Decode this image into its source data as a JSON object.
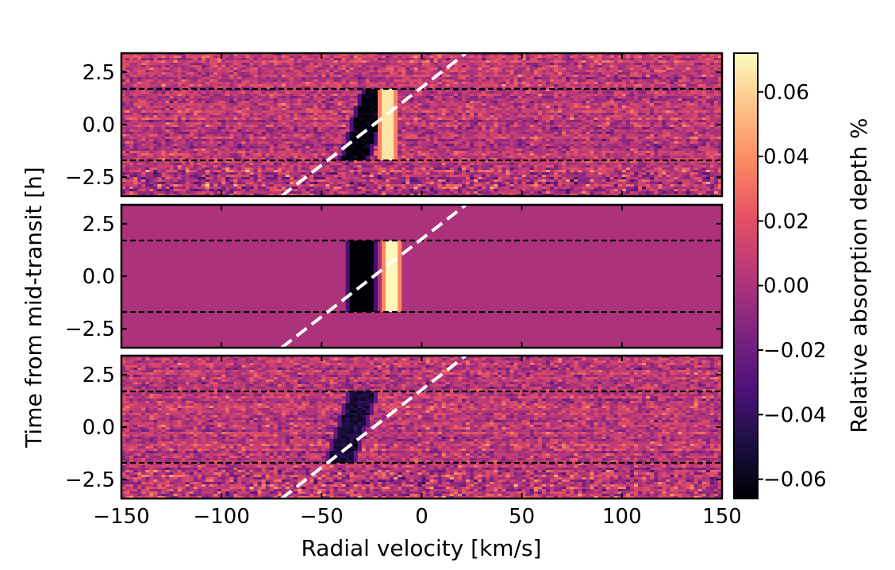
{
  "chart_data": {
    "type": "heatmap",
    "panels": [
      {
        "name": "",
        "kind": "observed-noisy",
        "shadow_velocity_kms": -28,
        "shadow_depth": -0.065,
        "bump_velocity_kms": -17,
        "bump_depth": 0.065,
        "shadow_slanted": true
      },
      {
        "name": "",
        "kind": "model",
        "shadow_velocity_kms": -30,
        "shadow_depth": -0.068,
        "bump_velocity_kms": -15,
        "bump_depth": 0.07,
        "shadow_slanted": false
      },
      {
        "name": "",
        "kind": "residual-noisy",
        "shadow_velocity_kms": -35,
        "shadow_depth": -0.05,
        "bump_velocity_kms": null,
        "bump_depth": 0,
        "shadow_slanted": true
      }
    ],
    "xlabel": "Radial velocity [km/s]",
    "ylabel": "Time from mid-transit [h]",
    "xlim": [
      -150,
      150
    ],
    "ylim": [
      -3.4,
      3.4
    ],
    "x_ticks": [
      "−150",
      "−100",
      "−50",
      "0",
      "50",
      "100",
      "150"
    ],
    "x_tick_values": [
      -150,
      -100,
      -50,
      0,
      50,
      100,
      150
    ],
    "y_ticks": [
      "2.5",
      "0.0",
      "−2.5"
    ],
    "y_tick_values": [
      2.5,
      0.0,
      -2.5
    ],
    "transit_limits_h": [
      1.7,
      -1.7
    ],
    "planet_trail": {
      "x": [
        -70,
        22
      ],
      "y": [
        -3.4,
        3.4
      ],
      "style": "white dashed"
    },
    "colorbar": {
      "label": "Relative absorption depth %",
      "ticks": [
        "0.06",
        "0.04",
        "0.02",
        "0.00",
        "−0.02",
        "−0.04",
        "−0.06"
      ],
      "tick_values": [
        0.06,
        0.04,
        0.02,
        0.0,
        -0.02,
        -0.04,
        -0.06
      ],
      "range": [
        -0.066,
        0.072
      ],
      "colormap": "magma"
    }
  }
}
